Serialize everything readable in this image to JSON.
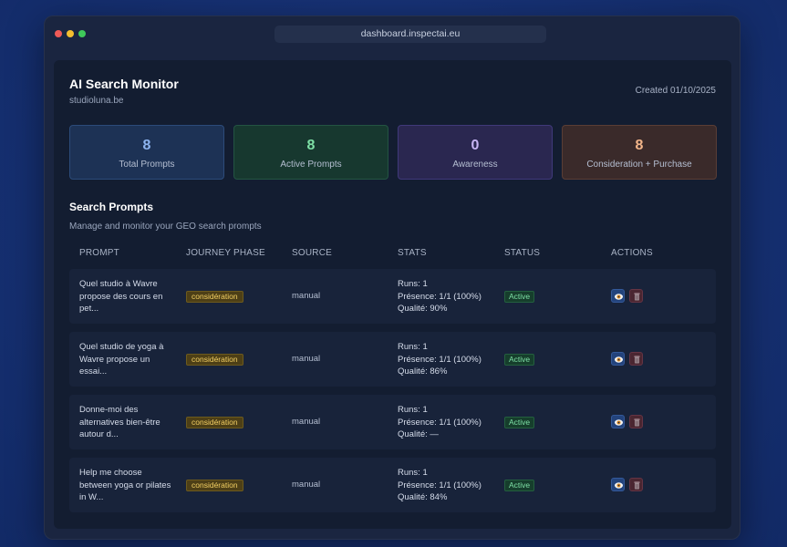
{
  "browser": {
    "url": "dashboard.inspectai.eu"
  },
  "header": {
    "title": "AI Search Monitor",
    "subtitle": "studioluna.be",
    "created": "Created 01/10/2025"
  },
  "stats": [
    {
      "value": "8",
      "label": "Total Prompts",
      "color": "#8db4f0"
    },
    {
      "value": "8",
      "label": "Active Prompts",
      "color": "#7ee0a6"
    },
    {
      "value": "0",
      "label": "Awareness",
      "color": "#c7b5f5"
    },
    {
      "value": "8",
      "label": "Consideration + Purchase",
      "color": "#f2b58a"
    }
  ],
  "section": {
    "title": "Search Prompts",
    "subtitle": "Manage and monitor your GEO search prompts"
  },
  "table": {
    "headers": [
      "PROMPT",
      "JOURNEY PHASE",
      "SOURCE",
      "STATS",
      "STATUS",
      "ACTIONS"
    ],
    "rows": [
      {
        "prompt": [
          "Quel studio à Wavre",
          "propose des cours en",
          "pet..."
        ],
        "phase": "considération",
        "source": "manual",
        "stats": [
          "Runs: 1",
          "Présence: 1/1 (100%)",
          "Qualité: 90%"
        ],
        "status": "Active"
      },
      {
        "prompt": [
          "Quel studio de yoga à",
          "Wavre propose un",
          "essai..."
        ],
        "phase": "considération",
        "source": "manual",
        "stats": [
          "Runs: 1",
          "Présence: 1/1 (100%)",
          "Qualité: 86%"
        ],
        "status": "Active"
      },
      {
        "prompt": [
          "Donne-moi des",
          "alternatives bien-être",
          "autour d..."
        ],
        "phase": "considération",
        "source": "manual",
        "stats": [
          "Runs: 1",
          "Présence: 1/1 (100%)",
          "Qualité: —"
        ],
        "status": "Active"
      },
      {
        "prompt": [
          "Help me choose",
          "between yoga or pilates",
          "in W..."
        ],
        "phase": "considération",
        "source": "manual",
        "stats": [
          "Runs: 1",
          "Présence: 1/1 (100%)",
          "Qualité: 84%"
        ],
        "status": "Active"
      }
    ]
  },
  "icons": {
    "view": "eye-icon",
    "delete": "trash-icon"
  }
}
